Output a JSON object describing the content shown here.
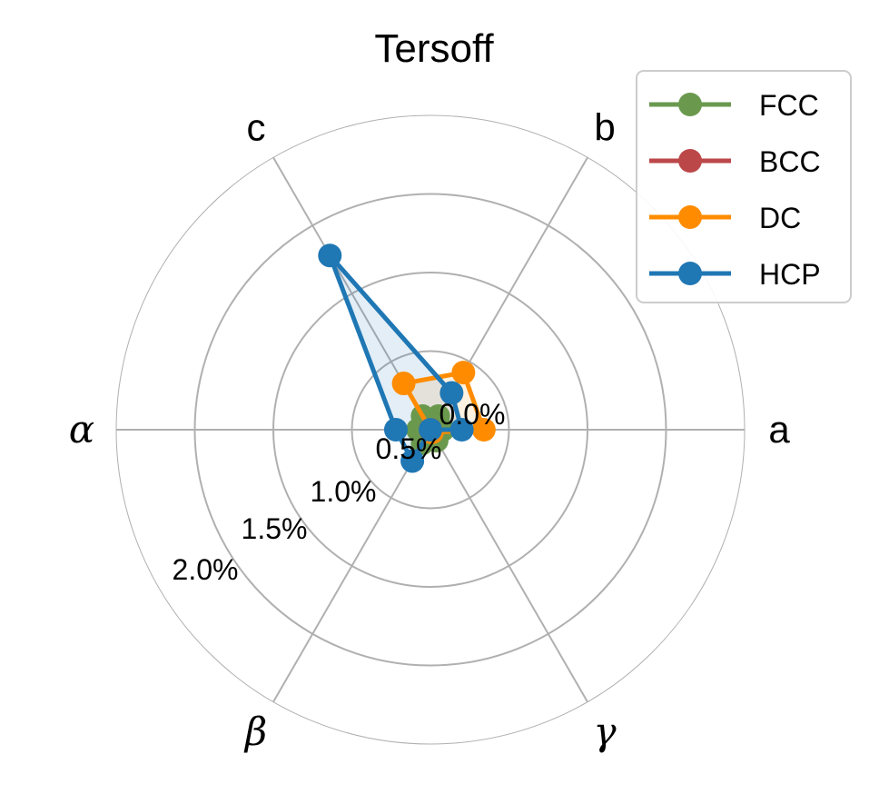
{
  "chart_data": {
    "type": "radar",
    "title": "Tersoff",
    "axes": [
      "a",
      "b",
      "c",
      "α",
      "β",
      "γ"
    ],
    "radial_ticks": [
      "0.0%",
      "0.5%",
      "1.0%",
      "1.5%",
      "2.0%"
    ],
    "radial_values": [
      0.0,
      0.5,
      1.0,
      1.5,
      2.0
    ],
    "rlim": [
      0,
      2.0
    ],
    "grid": true,
    "legend_position": "upper right",
    "series": [
      {
        "name": "FCC",
        "color": "#6a994e",
        "values": [
          0.08,
          0.1,
          0.1,
          0.08,
          0.1,
          0.08
        ]
      },
      {
        "name": "BCC",
        "color": "#bc4749",
        "values": [
          0,
          0,
          0,
          0,
          0,
          0
        ]
      },
      {
        "name": "DC",
        "color": "#ff8c00",
        "values": [
          0.34,
          0.42,
          0.34,
          0.0,
          0.0,
          0.02
        ]
      },
      {
        "name": "HCP",
        "color": "#1f77b4",
        "values": [
          0.2,
          0.27,
          1.28,
          0.22,
          0.23,
          0.0
        ]
      }
    ]
  }
}
